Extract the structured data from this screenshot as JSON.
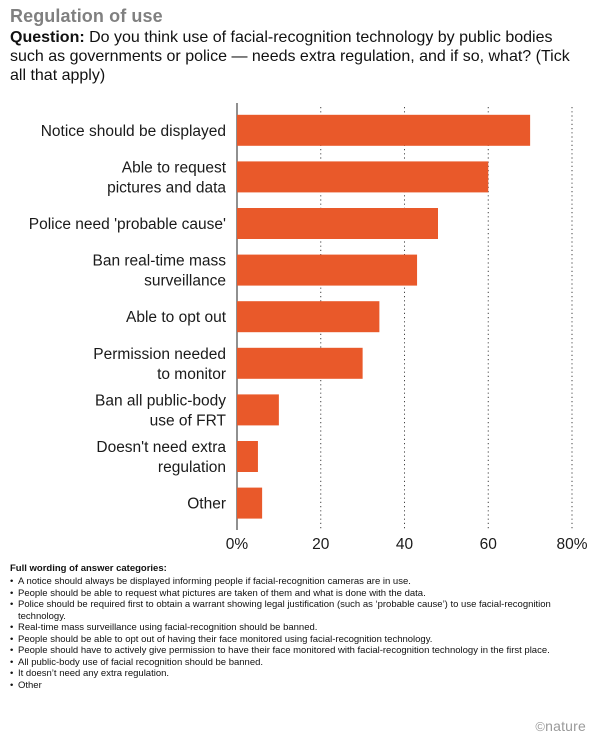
{
  "header": {
    "title": "Regulation of use",
    "question_label": "Question:",
    "question_text": " Do you think use of facial-recognition technology by public bodies such as governments or police — needs extra regulation, and if so, what? (Tick all that apply)"
  },
  "chart_data": {
    "type": "bar",
    "orientation": "horizontal",
    "categories": [
      [
        "Notice should be displayed"
      ],
      [
        "Able to request",
        "pictures and data"
      ],
      [
        "Police need 'probable cause'"
      ],
      [
        "Ban real-time mass",
        "surveillance"
      ],
      [
        "Able to opt out"
      ],
      [
        "Permission needed",
        "to monitor"
      ],
      [
        "Ban all public-body",
        "use of FRT"
      ],
      [
        "Doesn't need extra",
        "regulation"
      ],
      [
        "Other"
      ]
    ],
    "values": [
      70,
      60,
      48,
      43,
      34,
      30,
      10,
      5,
      6
    ],
    "xlim": [
      0,
      80
    ],
    "ticks": [
      0,
      20,
      40,
      60,
      80
    ],
    "tick_labels": [
      "0%",
      "20",
      "40",
      "60",
      "80%"
    ],
    "bar_color": "#e9592a",
    "grid": "dotted vertical"
  },
  "notes": {
    "title": "Full wording of answer categories:",
    "items": [
      "A notice should always be displayed informing people if facial-recognition cameras are in use.",
      "People should be able to request what pictures are taken of them and what is done with the data.",
      "Police should be required first to obtain a warrant showing legal justification (such as ‘probable cause’) to use facial-recognition technology.",
      "Real-time mass surveillance using facial-recognition should be banned.",
      "People should be able to opt out of having their face monitored using facial-recognition technology.",
      "People should have to actively give permission to have their face monitored with facial-recognition technology in the first place.",
      "All public-body use of facial recognition should be banned.",
      "It doesn’t need any extra regulation.",
      "Other"
    ]
  },
  "credit": {
    "symbol": "©",
    "text": "nature"
  }
}
